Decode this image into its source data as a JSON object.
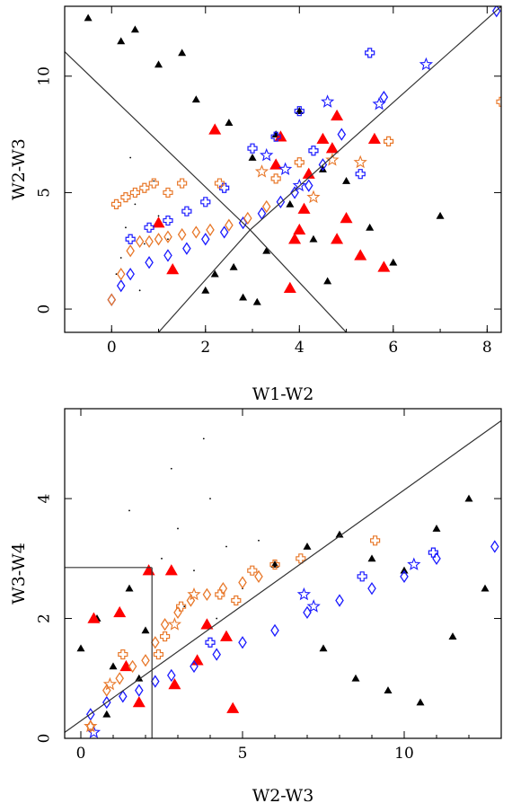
{
  "chart_data": [
    {
      "type": "scatter",
      "xlabel": "W1-W2",
      "ylabel": "W2-W3",
      "xlim": [
        -1,
        8.3
      ],
      "ylim": [
        -1,
        13
      ],
      "xticks": [
        0,
        2,
        4,
        6,
        8
      ],
      "xtick_labels": [
        "0",
        "2",
        "4",
        "6",
        "8"
      ],
      "yticks": [
        0,
        5,
        10
      ],
      "ytick_labels": [
        "0",
        "5",
        "10"
      ],
      "grid": false,
      "colors": {
        "black": "#000000",
        "red": "#ff0000",
        "orange": "#e8782a",
        "blue": "#1a1aff"
      },
      "lines": [
        {
          "x": [
            -1,
            2.95
          ],
          "y": [
            11.05,
            3.4
          ]
        },
        {
          "x": [
            1.0,
            2.95
          ],
          "y": [
            -1.0,
            3.4
          ]
        },
        {
          "x": [
            2.95,
            5.0
          ],
          "y": [
            3.4,
            -1.0
          ]
        },
        {
          "x": [
            2.95,
            8.3
          ],
          "y": [
            3.4,
            13.0
          ]
        }
      ],
      "series": [
        {
          "marker": "dot",
          "color": "#000000",
          "x": [
            0.3,
            0.5,
            0.7,
            0.1,
            0.9,
            1.2,
            0.4,
            0.6,
            0.2,
            1.0
          ],
          "y": [
            3.5,
            4.5,
            2.8,
            1.5,
            5.5,
            3.0,
            6.5,
            0.8,
            2.2,
            4.0
          ]
        },
        {
          "marker": "triangle",
          "color": "#000000",
          "x": [
            -0.5,
            0.2,
            1.0,
            1.8,
            2.5,
            3.0,
            3.5,
            4.0,
            4.5,
            2.2,
            2.8,
            3.3,
            1.5,
            0.5,
            3.8,
            4.3,
            5.0,
            6.0,
            7.0,
            2.0,
            2.6,
            3.1,
            4.6,
            5.5
          ],
          "y": [
            12.5,
            11.5,
            10.5,
            9.0,
            8.0,
            6.5,
            7.5,
            8.5,
            6.0,
            1.5,
            0.5,
            2.5,
            11.0,
            12.0,
            4.5,
            3.0,
            5.5,
            2.0,
            4.0,
            0.8,
            1.8,
            0.3,
            1.2,
            3.5
          ]
        },
        {
          "marker": "triangle-red",
          "color": "#ff0000",
          "x": [
            1.0,
            1.3,
            3.6,
            4.2,
            4.5,
            4.8,
            3.5,
            4.0,
            3.9,
            4.8,
            5.0,
            5.3,
            5.8,
            4.1,
            2.2,
            4.7,
            5.6,
            3.8
          ],
          "y": [
            3.7,
            1.7,
            7.4,
            5.8,
            7.3,
            8.3,
            6.2,
            3.4,
            3.0,
            3.0,
            3.9,
            2.3,
            1.8,
            4.3,
            7.7,
            6.9,
            7.3,
            0.9
          ]
        },
        {
          "marker": "diamond",
          "color": "#1a1aff",
          "x": [
            0.0,
            0.2,
            0.4,
            0.8,
            1.2,
            1.6,
            2.0,
            2.4,
            2.8,
            3.2,
            3.6,
            3.9,
            4.2,
            4.5,
            4.9,
            5.8,
            8.2
          ],
          "y": [
            0.4,
            1.0,
            1.5,
            2.0,
            2.3,
            2.6,
            3.0,
            3.3,
            3.7,
            4.1,
            4.6,
            5.0,
            5.3,
            6.2,
            7.5,
            9.1,
            12.8
          ]
        },
        {
          "marker": "cross",
          "color": "#1a1aff",
          "x": [
            0.4,
            0.8,
            1.2,
            1.6,
            2.0,
            2.4,
            3.0,
            3.5,
            4.0,
            4.3,
            5.5,
            5.3
          ],
          "y": [
            3.0,
            3.5,
            3.8,
            4.2,
            4.6,
            5.2,
            6.9,
            7.4,
            8.5,
            6.8,
            11.0,
            5.8
          ]
        },
        {
          "marker": "star",
          "color": "#1a1aff",
          "x": [
            3.3,
            3.7,
            4.0,
            4.6,
            5.7,
            6.7
          ],
          "y": [
            6.6,
            6.0,
            5.3,
            8.9,
            8.8,
            10.5
          ]
        },
        {
          "marker": "diamond",
          "color": "#e8782a",
          "x": [
            0.0,
            0.2,
            0.4,
            0.6,
            0.8,
            1.0,
            1.2,
            1.5,
            1.8,
            2.1,
            2.5,
            2.9,
            3.3
          ],
          "y": [
            0.4,
            1.5,
            2.5,
            2.9,
            2.9,
            3.0,
            3.1,
            3.2,
            3.3,
            3.4,
            3.6,
            3.9,
            4.4
          ]
        },
        {
          "marker": "cross",
          "color": "#e8782a",
          "x": [
            0.1,
            0.3,
            0.5,
            0.7,
            0.9,
            1.2,
            1.5,
            2.3,
            3.5,
            4.0,
            5.9,
            8.3
          ],
          "y": [
            4.5,
            4.8,
            5.0,
            5.2,
            5.4,
            5.0,
            5.4,
            5.4,
            5.6,
            6.3,
            7.2,
            8.9
          ]
        },
        {
          "marker": "star",
          "color": "#e8782a",
          "x": [
            3.2,
            4.3,
            4.7,
            5.3
          ],
          "y": [
            5.9,
            4.8,
            6.4,
            6.3
          ]
        }
      ]
    },
    {
      "type": "scatter",
      "xlabel": "W2-W3",
      "ylabel": "W3-W4",
      "xlim": [
        -0.5,
        13
      ],
      "ylim": [
        0,
        5.5
      ],
      "xticks": [
        0,
        5,
        10
      ],
      "xtick_labels": [
        "0",
        "5",
        "10"
      ],
      "yticks": [
        0,
        2,
        4
      ],
      "ytick_labels": [
        "0",
        "2",
        "4"
      ],
      "grid": false,
      "colors": {
        "black": "#000000",
        "red": "#ff0000",
        "orange": "#e8782a",
        "blue": "#1a1aff"
      },
      "lines": [
        {
          "x": [
            -0.5,
            13
          ],
          "y": [
            0.1,
            5.3
          ]
        },
        {
          "x": [
            -0.5,
            2.2
          ],
          "y": [
            2.85,
            2.85
          ]
        },
        {
          "x": [
            2.2,
            2.2
          ],
          "y": [
            0,
            2.85
          ]
        }
      ],
      "series": [
        {
          "marker": "dot",
          "color": "#000000",
          "x": [
            2.5,
            3.0,
            3.5,
            4.0,
            4.5,
            5.0,
            2.8,
            3.8,
            4.2,
            1.5,
            5.5,
            3.2
          ],
          "y": [
            3.0,
            3.5,
            2.8,
            4.0,
            3.2,
            2.5,
            4.5,
            5.0,
            2.0,
            3.8,
            3.3,
            2.2
          ]
        },
        {
          "marker": "triangle",
          "color": "#000000",
          "x": [
            0.0,
            0.5,
            1.0,
            1.5,
            2.0,
            6.0,
            7.0,
            8.0,
            9.0,
            10.0,
            11.0,
            12.0,
            12.5,
            7.5,
            8.5,
            9.5,
            10.5,
            11.5,
            0.8,
            1.8
          ],
          "y": [
            1.5,
            2.0,
            1.2,
            2.5,
            1.8,
            2.9,
            3.2,
            3.4,
            3.0,
            2.8,
            3.5,
            4.0,
            2.5,
            1.5,
            1.0,
            0.8,
            0.6,
            1.7,
            0.4,
            1.0
          ]
        },
        {
          "marker": "triangle-red",
          "color": "#ff0000",
          "x": [
            1.2,
            2.8,
            1.8,
            2.9,
            4.7,
            2.1,
            4.5,
            3.6,
            3.9,
            1.4,
            0.4
          ],
          "y": [
            2.1,
            2.8,
            0.6,
            0.9,
            0.5,
            2.8,
            1.7,
            1.3,
            1.9,
            1.2,
            2.0
          ]
        },
        {
          "marker": "diamond",
          "color": "#1a1aff",
          "x": [
            0.3,
            0.8,
            1.3,
            1.8,
            2.3,
            2.8,
            3.5,
            4.2,
            5.0,
            6.0,
            7.0,
            8.0,
            9.0,
            10.0,
            11.0,
            12.8
          ],
          "y": [
            0.4,
            0.6,
            0.7,
            0.8,
            0.95,
            1.05,
            1.2,
            1.4,
            1.6,
            1.8,
            2.1,
            2.3,
            2.5,
            2.7,
            3.0,
            3.2
          ]
        },
        {
          "marker": "cross",
          "color": "#1a1aff",
          "x": [
            8.7,
            10.9,
            4.0
          ],
          "y": [
            2.7,
            3.1,
            1.6
          ]
        },
        {
          "marker": "star",
          "color": "#1a1aff",
          "x": [
            6.9,
            7.2,
            10.3,
            0.4
          ],
          "y": [
            2.4,
            2.2,
            2.9,
            0.1
          ]
        },
        {
          "marker": "diamond",
          "color": "#e8782a",
          "x": [
            0.3,
            0.8,
            1.2,
            1.6,
            2.0,
            2.3,
            2.6,
            3.0,
            3.4,
            3.9,
            4.4,
            5.0,
            5.5
          ],
          "y": [
            0.2,
            0.8,
            1.0,
            1.2,
            1.3,
            1.6,
            1.9,
            2.1,
            2.3,
            2.4,
            2.5,
            2.6,
            2.7
          ]
        },
        {
          "marker": "cross",
          "color": "#e8782a",
          "x": [
            2.6,
            2.4,
            3.1,
            4.3,
            4.8,
            5.3,
            6.0,
            6.8,
            9.1,
            1.3
          ],
          "y": [
            1.7,
            1.4,
            2.2,
            2.4,
            2.3,
            2.8,
            2.9,
            3.0,
            3.3,
            1.4
          ]
        },
        {
          "marker": "star",
          "color": "#e8782a",
          "x": [
            0.3,
            0.9,
            2.9,
            3.5
          ],
          "y": [
            0.2,
            0.9,
            1.9,
            2.4
          ]
        }
      ]
    }
  ]
}
